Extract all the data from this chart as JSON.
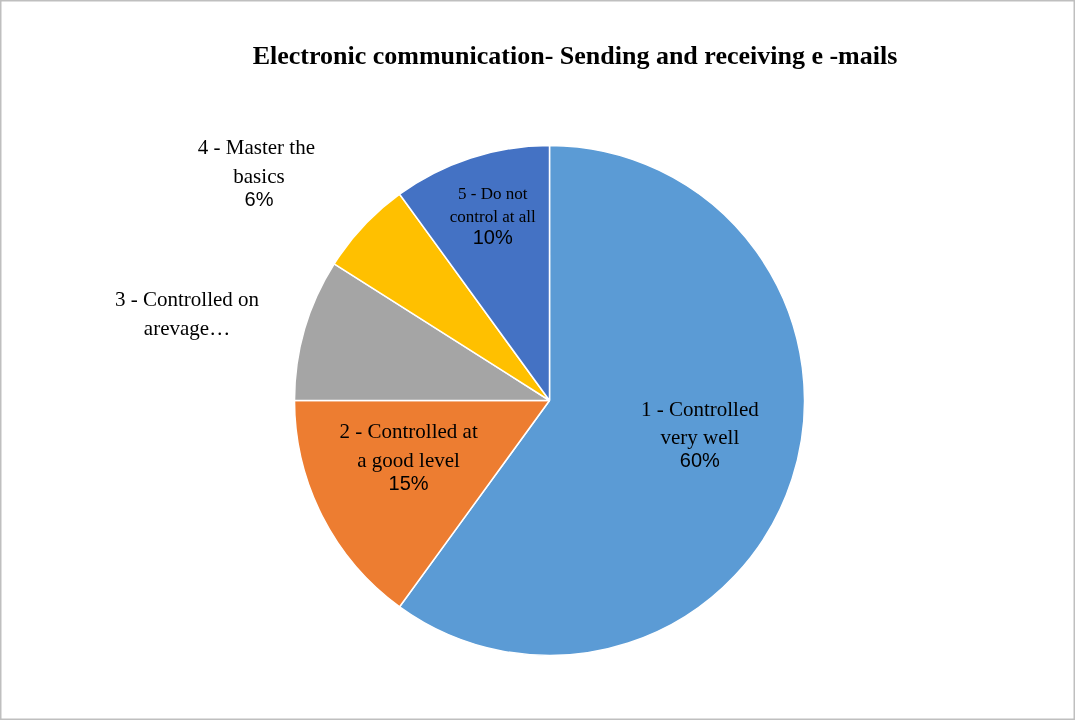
{
  "chart_data": {
    "type": "pie",
    "title": "Electronic communication- Sending and receiving e -mails",
    "categories": [
      "1 - Controlled very well",
      "2 - Controlled at a good level",
      "3 - Controlled on arevage…",
      "4 -  Master the basics",
      "5 - Do not control at all"
    ],
    "values": [
      60,
      15,
      9,
      6,
      10
    ],
    "colors": [
      "#5b9bd5",
      "#ed7d31",
      "#a5a5a5",
      "#ffc000",
      "#4472c4"
    ],
    "value_labels": [
      "60%",
      "15%",
      null,
      "6%",
      "10%"
    ]
  }
}
